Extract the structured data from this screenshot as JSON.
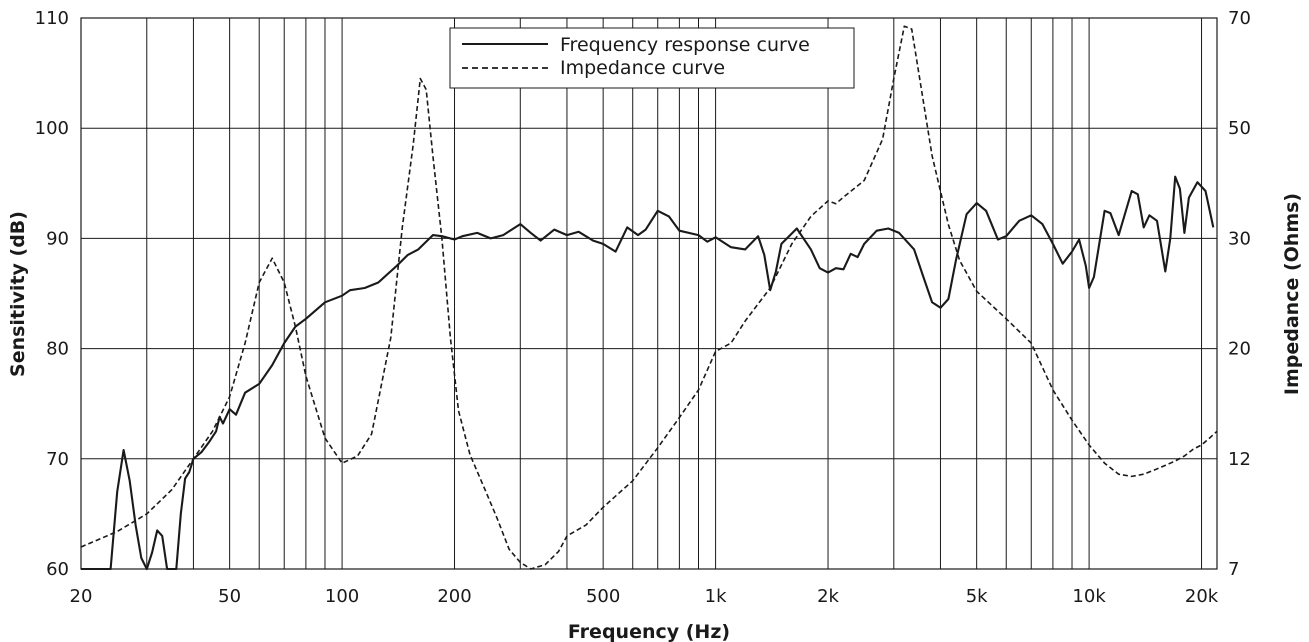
{
  "chart_data": {
    "type": "line",
    "xlabel": "Frequency (Hz)",
    "ylabel_left": "Sensitivity (dB)",
    "ylabel_right": "Impedance (Ohms)",
    "x_scale": "log",
    "xlim": [
      20,
      22000
    ],
    "ylim_left": [
      60,
      110
    ],
    "right_axis_ticks": [
      "7",
      "12",
      "20",
      "30",
      "50",
      "70"
    ],
    "left_axis_ticks": [
      "60",
      "70",
      "80",
      "90",
      "100",
      "110"
    ],
    "x_tick_labels": [
      {
        "value": 20,
        "label": "20"
      },
      {
        "value": 50,
        "label": "50"
      },
      {
        "value": 100,
        "label": "100"
      },
      {
        "value": 200,
        "label": "200"
      },
      {
        "value": 500,
        "label": "500"
      },
      {
        "value": 1000,
        "label": "1k"
      },
      {
        "value": 2000,
        "label": "2k"
      },
      {
        "value": 5000,
        "label": "5k"
      },
      {
        "value": 10000,
        "label": "10k"
      },
      {
        "value": 20000,
        "label": "20k"
      }
    ],
    "grid": true,
    "legend_position": "top-center",
    "series": [
      {
        "name": "Frequency response curve",
        "style": "solid",
        "axis": "left",
        "points": [
          [
            20,
            60
          ],
          [
            24,
            60
          ],
          [
            25,
            67
          ],
          [
            26,
            70.8
          ],
          [
            27,
            68
          ],
          [
            28,
            64
          ],
          [
            29,
            61
          ],
          [
            30,
            60
          ],
          [
            31,
            61.5
          ],
          [
            32,
            63.5
          ],
          [
            33,
            63
          ],
          [
            34,
            60
          ],
          [
            36,
            60
          ],
          [
            37,
            65
          ],
          [
            38,
            68.2
          ],
          [
            39,
            68.8
          ],
          [
            40,
            70
          ],
          [
            42,
            70.6
          ],
          [
            44,
            71.5
          ],
          [
            46,
            72.5
          ],
          [
            47,
            73.8
          ],
          [
            48,
            73.2
          ],
          [
            50,
            74.5
          ],
          [
            52,
            74
          ],
          [
            55,
            76
          ],
          [
            60,
            76.8
          ],
          [
            65,
            78.5
          ],
          [
            70,
            80.5
          ],
          [
            75,
            82
          ],
          [
            80,
            82.7
          ],
          [
            90,
            84.2
          ],
          [
            100,
            84.8
          ],
          [
            105,
            85.3
          ],
          [
            115,
            85.5
          ],
          [
            125,
            86
          ],
          [
            140,
            87.5
          ],
          [
            150,
            88.5
          ],
          [
            160,
            89
          ],
          [
            175,
            90.3
          ],
          [
            185,
            90.2
          ],
          [
            200,
            89.9
          ],
          [
            210,
            90.2
          ],
          [
            230,
            90.5
          ],
          [
            250,
            90
          ],
          [
            270,
            90.3
          ],
          [
            300,
            91.3
          ],
          [
            320,
            90.5
          ],
          [
            340,
            89.8
          ],
          [
            370,
            90.8
          ],
          [
            400,
            90.3
          ],
          [
            430,
            90.6
          ],
          [
            470,
            89.8
          ],
          [
            500,
            89.5
          ],
          [
            540,
            88.8
          ],
          [
            580,
            91
          ],
          [
            620,
            90.3
          ],
          [
            650,
            90.8
          ],
          [
            700,
            92.5
          ],
          [
            750,
            92
          ],
          [
            800,
            90.7
          ],
          [
            900,
            90.3
          ],
          [
            950,
            89.7
          ],
          [
            1000,
            90.1
          ],
          [
            1100,
            89.2
          ],
          [
            1200,
            89
          ],
          [
            1300,
            90.2
          ],
          [
            1350,
            88.5
          ],
          [
            1400,
            85.3
          ],
          [
            1450,
            87
          ],
          [
            1500,
            89.5
          ],
          [
            1650,
            90.9
          ],
          [
            1800,
            89
          ],
          [
            1900,
            87.3
          ],
          [
            2000,
            86.9
          ],
          [
            2100,
            87.3
          ],
          [
            2200,
            87.2
          ],
          [
            2300,
            88.6
          ],
          [
            2400,
            88.3
          ],
          [
            2500,
            89.5
          ],
          [
            2700,
            90.7
          ],
          [
            2900,
            90.9
          ],
          [
            3100,
            90.5
          ],
          [
            3400,
            89
          ],
          [
            3600,
            86.5
          ],
          [
            3800,
            84.2
          ],
          [
            4000,
            83.7
          ],
          [
            4200,
            84.5
          ],
          [
            4400,
            88
          ],
          [
            4700,
            92.2
          ],
          [
            5000,
            93.2
          ],
          [
            5300,
            92.5
          ],
          [
            5700,
            89.9
          ],
          [
            6000,
            90.2
          ],
          [
            6500,
            91.6
          ],
          [
            7000,
            92.1
          ],
          [
            7500,
            91.3
          ],
          [
            8000,
            89.5
          ],
          [
            8500,
            87.7
          ],
          [
            9000,
            88.8
          ],
          [
            9400,
            89.9
          ],
          [
            9800,
            87.5
          ],
          [
            10000,
            85.5
          ],
          [
            10300,
            86.5
          ],
          [
            11000,
            92.5
          ],
          [
            11400,
            92.3
          ],
          [
            12000,
            90.3
          ],
          [
            13000,
            94.3
          ],
          [
            13500,
            94
          ],
          [
            14000,
            91
          ],
          [
            14500,
            92.1
          ],
          [
            15200,
            91.6
          ],
          [
            16000,
            87
          ],
          [
            16500,
            90
          ],
          [
            17000,
            95.6
          ],
          [
            17500,
            94.5
          ],
          [
            18000,
            90.5
          ],
          [
            18500,
            93.7
          ],
          [
            19500,
            95.1
          ],
          [
            20500,
            94.3
          ],
          [
            21500,
            91
          ]
        ]
      },
      {
        "name": "Impedance curve",
        "style": "dashed",
        "axis": "right",
        "points": [
          [
            20,
            8
          ],
          [
            25,
            8.7
          ],
          [
            30,
            9.5
          ],
          [
            35,
            10.6
          ],
          [
            40,
            12
          ],
          [
            45,
            14
          ],
          [
            50,
            16.5
          ],
          [
            55,
            20.5
          ],
          [
            60,
            26
          ],
          [
            65,
            28.2
          ],
          [
            70,
            26
          ],
          [
            75,
            22
          ],
          [
            80,
            18
          ],
          [
            90,
            13.5
          ],
          [
            100,
            11.8
          ],
          [
            110,
            12.2
          ],
          [
            120,
            13.8
          ],
          [
            135,
            21
          ],
          [
            145,
            32
          ],
          [
            155,
            47
          ],
          [
            162,
            59
          ],
          [
            168,
            57
          ],
          [
            175,
            45
          ],
          [
            185,
            30
          ],
          [
            195,
            21
          ],
          [
            205,
            15.5
          ],
          [
            220,
            12.3
          ],
          [
            240,
            10.7
          ],
          [
            260,
            9.3
          ],
          [
            280,
            7.9
          ],
          [
            300,
            7.3
          ],
          [
            320,
            7
          ],
          [
            350,
            7.2
          ],
          [
            380,
            7.8
          ],
          [
            400,
            8.5
          ],
          [
            450,
            9
          ],
          [
            500,
            9.8
          ],
          [
            600,
            11
          ],
          [
            700,
            12.8
          ],
          [
            800,
            15
          ],
          [
            900,
            17
          ],
          [
            1000,
            19.8
          ],
          [
            1100,
            20.5
          ],
          [
            1200,
            22.5
          ],
          [
            1400,
            25.5
          ],
          [
            1600,
            29.5
          ],
          [
            1800,
            34
          ],
          [
            2000,
            36.8
          ],
          [
            2100,
            36.3
          ],
          [
            2200,
            37.5
          ],
          [
            2500,
            40.5
          ],
          [
            2800,
            48
          ],
          [
            3000,
            59
          ],
          [
            3200,
            68.5
          ],
          [
            3350,
            68
          ],
          [
            3500,
            60
          ],
          [
            3800,
            45
          ],
          [
            4200,
            32.5
          ],
          [
            4500,
            28
          ],
          [
            5000,
            25.2
          ],
          [
            6000,
            22.7
          ],
          [
            7000,
            20.5
          ],
          [
            8000,
            17
          ],
          [
            9000,
            14.8
          ],
          [
            10000,
            13
          ],
          [
            11000,
            11.8
          ],
          [
            12000,
            11.3
          ],
          [
            13000,
            11.2
          ],
          [
            14000,
            11.3
          ],
          [
            15000,
            11.5
          ],
          [
            16000,
            11.7
          ],
          [
            17000,
            11.9
          ],
          [
            18000,
            12.2
          ],
          [
            19000,
            12.7
          ],
          [
            20000,
            13
          ],
          [
            21000,
            13.5
          ],
          [
            22000,
            14
          ]
        ]
      }
    ]
  }
}
